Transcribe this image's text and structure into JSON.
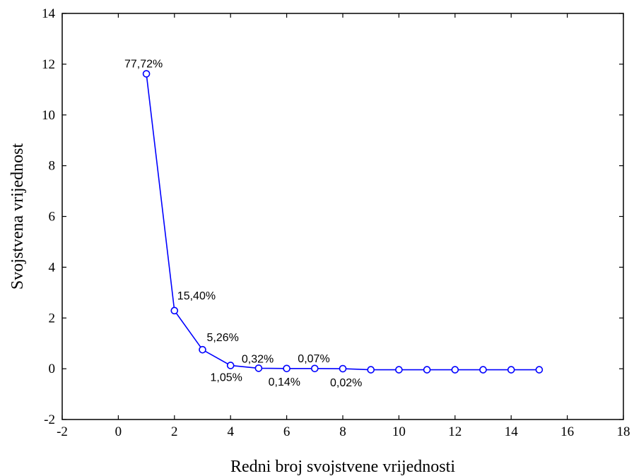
{
  "chart_data": {
    "type": "line",
    "xlabel": "Redni broj svojstvene vrijednosti",
    "ylabel": "Svojstvena vrijednost",
    "xlim": [
      -2,
      18
    ],
    "ylim": [
      -2,
      14
    ],
    "xticks": [
      "-2",
      "0",
      "2",
      "4",
      "6",
      "8",
      "10",
      "12",
      "14",
      "16",
      "18"
    ],
    "yticks": [
      "-2",
      "0",
      "2",
      "4",
      "6",
      "8",
      "10",
      "12",
      "14"
    ],
    "grid": false,
    "legend": "none",
    "series_color": "#0000ff",
    "x": [
      1,
      2,
      3,
      4,
      5,
      6,
      7,
      8,
      9,
      10,
      11,
      12,
      13,
      14,
      15
    ],
    "y": [
      11.62,
      2.29,
      0.75,
      0.13,
      0.02,
      0.01,
      0.01,
      0.003,
      -0.04,
      -0.04,
      -0.04,
      -0.04,
      -0.04,
      -0.04,
      -0.04
    ],
    "annotations": [
      {
        "x": 1,
        "y": 11.62,
        "text": "77,72%"
      },
      {
        "x": 2,
        "y": 2.29,
        "text": "15,40%"
      },
      {
        "x": 3,
        "y": 0.75,
        "text": "5,26%"
      },
      {
        "x": 4,
        "y": 0.13,
        "text": "1,05%"
      },
      {
        "x": 5,
        "y": 0.02,
        "text": "0,32%"
      },
      {
        "x": 6,
        "y": 0.01,
        "text": "0,14%"
      },
      {
        "x": 7,
        "y": 0.01,
        "text": "0,07%"
      },
      {
        "x": 8,
        "y": 0.003,
        "text": "0,02%"
      }
    ]
  }
}
